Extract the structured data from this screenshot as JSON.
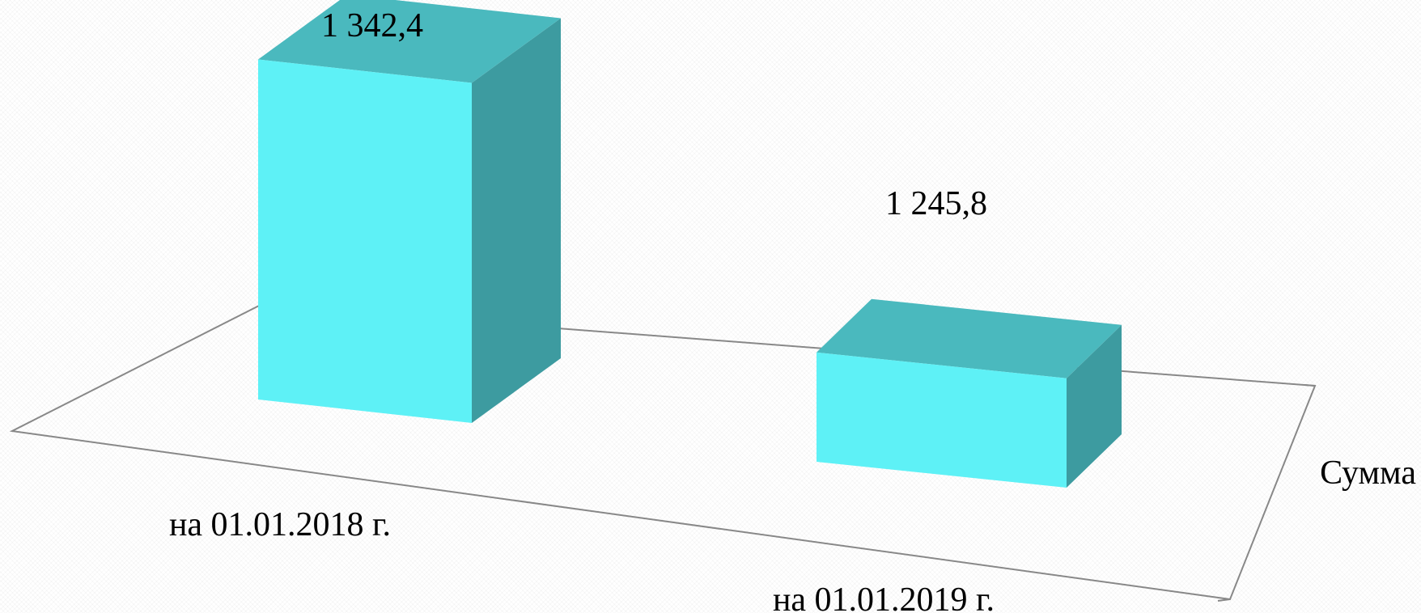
{
  "chart_data": {
    "type": "bar",
    "categories": [
      "на 01.01.2018 г.",
      "на 01.01.2019 г."
    ],
    "series": [
      {
        "name": "Сумма",
        "values": [
          1342.4,
          1245.8
        ]
      }
    ],
    "value_labels": [
      "1 342,4",
      "1 245,8"
    ],
    "title": "",
    "xlabel": "",
    "ylabel": "",
    "ylim": [
      1200,
      1350
    ],
    "grid": false,
    "three_d": true,
    "legend": "right"
  },
  "colors": {
    "front": "#5ef1f6",
    "side": "#3d9ba0",
    "top": "#4ab9be",
    "floor_edge": "#888888"
  }
}
